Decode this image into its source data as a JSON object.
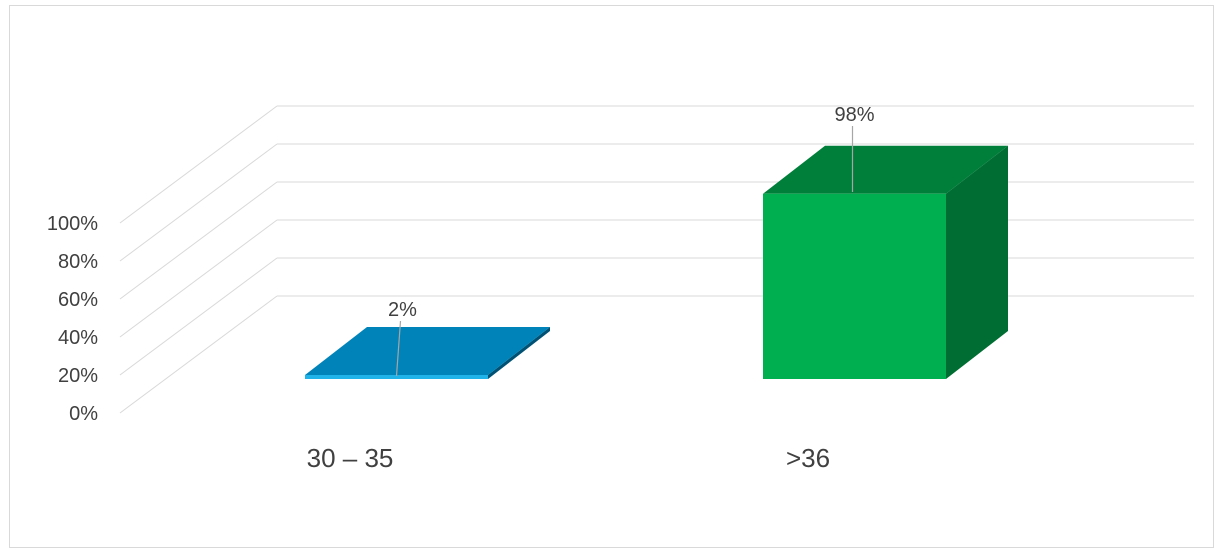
{
  "chart_data": {
    "type": "bar",
    "style": "3d-column",
    "categories": [
      "30 – 35",
      ">36"
    ],
    "series": [
      {
        "values": [
          2,
          98
        ],
        "colors": [
          "#0083b9",
          "#00b050"
        ]
      }
    ],
    "data_labels": [
      "2%",
      "98%"
    ],
    "y_ticks": [
      "0%",
      "20%",
      "40%",
      "60%",
      "80%",
      "100%"
    ],
    "ylim": [
      0,
      100
    ],
    "grid": true,
    "legend": "none"
  }
}
